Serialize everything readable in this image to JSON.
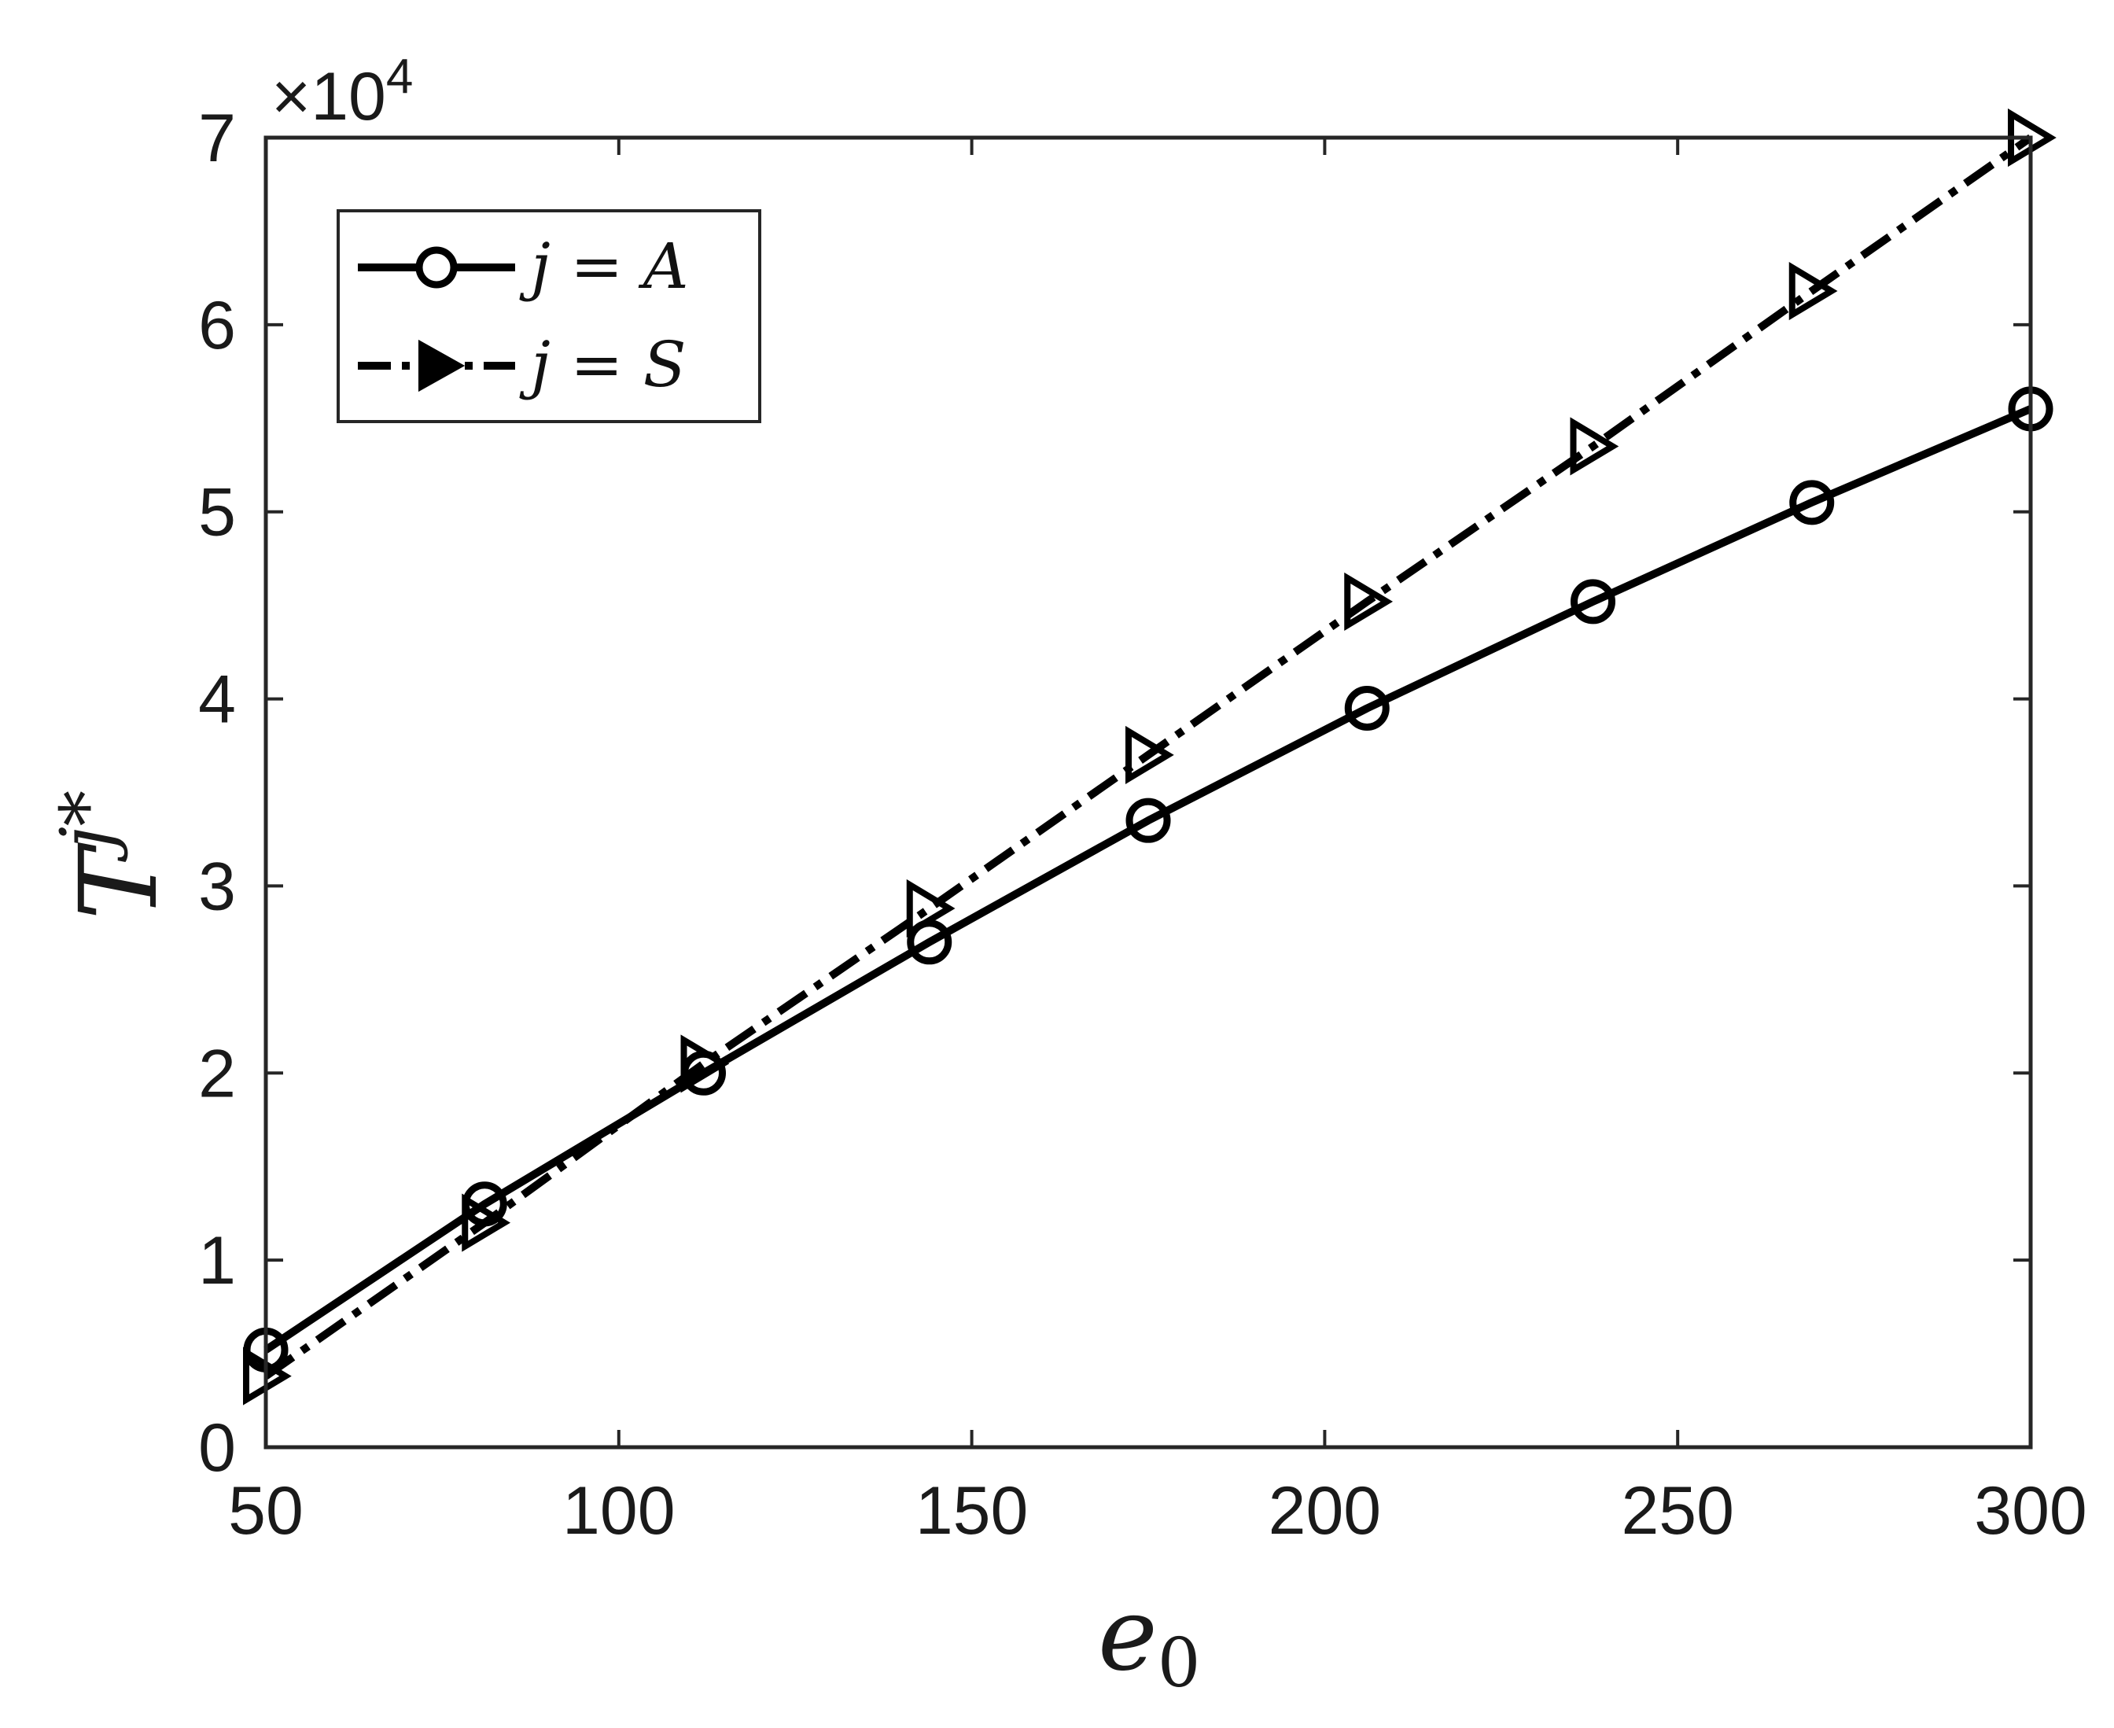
{
  "chart_data": {
    "type": "line",
    "exponent_label": "×10",
    "exponent_power": "4",
    "xlabel": {
      "base": "e",
      "sub": "0"
    },
    "ylabel": {
      "base": "T",
      "sup": "j*"
    },
    "xlim": [
      50,
      300
    ],
    "ylim": [
      0,
      70000
    ],
    "x_ticks": [
      50,
      100,
      150,
      200,
      250,
      300
    ],
    "y_ticks": [
      0,
      10000,
      20000,
      30000,
      40000,
      50000,
      60000,
      70000
    ],
    "y_tick_labels": [
      "0",
      "1",
      "2",
      "3",
      "4",
      "5",
      "6",
      "7"
    ],
    "grid": false,
    "legend_position": "top-left",
    "series": [
      {
        "name": "j = A",
        "label_math": {
          "var": "j",
          "eq": " = ",
          "val": "A"
        },
        "marker": "circle",
        "line_style": "solid",
        "color": "#000000",
        "x": [
          50,
          81,
          112,
          144,
          175,
          206,
          238,
          269,
          300
        ],
        "y": [
          5200,
          13000,
          20000,
          27000,
          33500,
          39500,
          45200,
          50500,
          55500
        ]
      },
      {
        "name": "j = S",
        "label_math": {
          "var": "j",
          "eq": " = ",
          "val": "S"
        },
        "marker": "triangle-right",
        "line_style": "dash-dot",
        "color": "#000000",
        "x": [
          50,
          81,
          112,
          144,
          175,
          206,
          238,
          269,
          300
        ],
        "y": [
          3800,
          12000,
          20500,
          28800,
          37000,
          45200,
          53500,
          61800,
          70000
        ]
      }
    ]
  }
}
